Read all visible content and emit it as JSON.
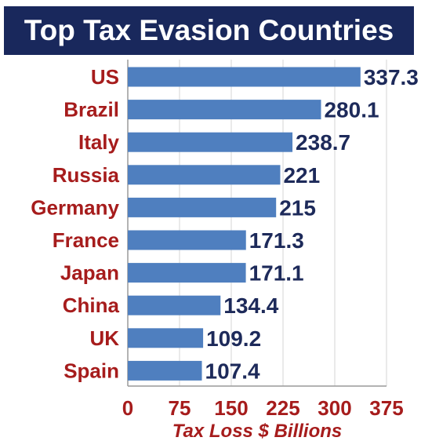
{
  "chart_data": {
    "type": "bar",
    "orientation": "horizontal",
    "title": "Top Tax Evasion Countries",
    "xlabel": "Tax Loss $ Billions",
    "ylabel": "",
    "categories": [
      "US",
      "Brazil",
      "Italy",
      "Russia",
      "Germany",
      "France",
      "Japan",
      "China",
      "UK",
      "Spain"
    ],
    "values": [
      337.3,
      280.1,
      238.7,
      221,
      215,
      171.3,
      171.1,
      134.4,
      109.2,
      107.4
    ],
    "value_labels": [
      "337.3",
      "280.1",
      "238.7",
      "221",
      "215",
      "171.3",
      "171.1",
      "134.4",
      "109.2",
      "107.4"
    ],
    "x_ticks": [
      "0",
      "75",
      "150",
      "225",
      "300",
      "375"
    ],
    "xlim": [
      0,
      375
    ],
    "grid": true,
    "legend": "none",
    "bar_color": "#4f7fbf",
    "title_background": "#19285c",
    "label_color": "#a61c1c",
    "value_color": "#1d2a5a"
  }
}
